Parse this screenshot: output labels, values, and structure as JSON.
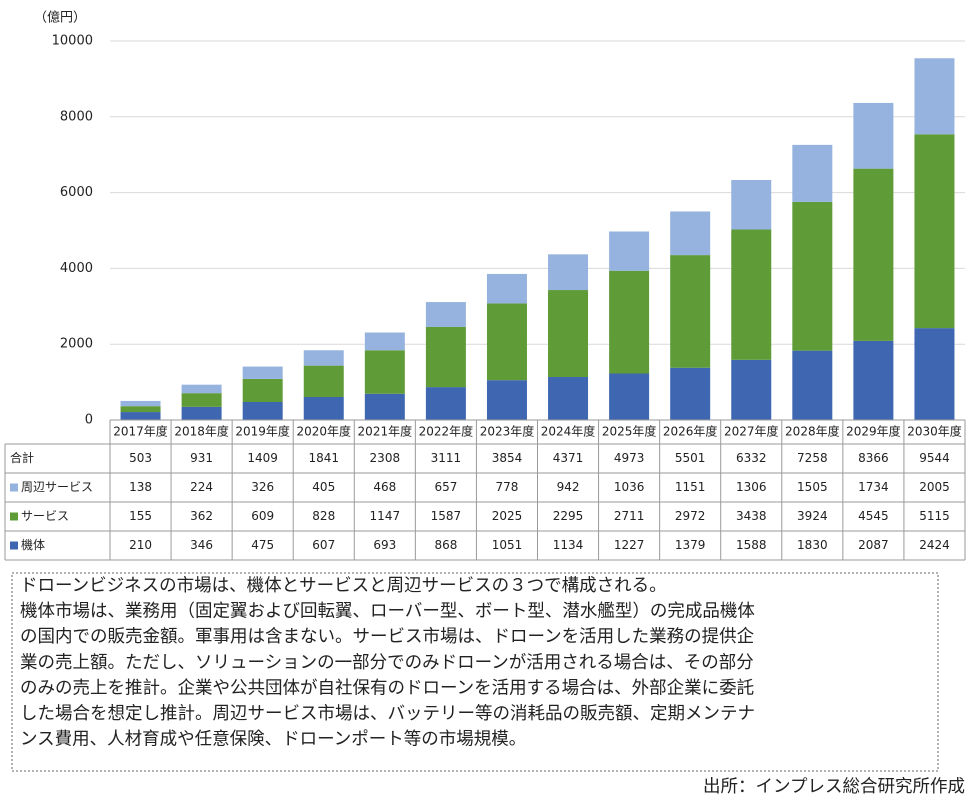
{
  "chart_data": {
    "type": "stacked_bar",
    "y_label": "（億円）",
    "categories": [
      "2017年度",
      "2018年度",
      "2019年度",
      "2020年度",
      "2021年度",
      "2022年度",
      "2023年度",
      "2024年度",
      "2025年度",
      "2026年度",
      "2027年度",
      "2028年度",
      "2029年度",
      "2030年度"
    ],
    "total": {
      "name": "合計",
      "values": [
        503,
        931,
        1409,
        1841,
        2308,
        3111,
        3854,
        4371,
        4973,
        5501,
        6332,
        7258,
        8366,
        9544
      ]
    },
    "series": [
      {
        "name": "周辺サービス",
        "color": "#95b3de",
        "values": [
          138,
          224,
          326,
          405,
          468,
          657,
          778,
          942,
          1036,
          1151,
          1306,
          1505,
          1734,
          2005
        ]
      },
      {
        "name": "サービス",
        "color": "#5f9c38",
        "values": [
          155,
          362,
          609,
          828,
          1147,
          1587,
          2025,
          2295,
          2711,
          2972,
          3438,
          3924,
          4545,
          5115
        ]
      },
      {
        "name": "機体",
        "color": "#3f67b1",
        "values": [
          210,
          346,
          475,
          607,
          693,
          868,
          1051,
          1134,
          1227,
          1379,
          1588,
          1830,
          2087,
          2424
        ]
      }
    ],
    "ylim": [
      0,
      10000
    ],
    "yticks": [
      0,
      2000,
      4000,
      6000,
      8000,
      10000
    ],
    "grid": true
  },
  "note": {
    "lines": [
      "ドローンビジネスの市場は、機体とサービスと周辺サービスの３つで構成される。",
      "機体市場は、業務用（固定翼および回転翼、ローバー型、ボート型、潜水艦型）の完成品機体",
      "の国内での販売金額。軍事用は含まない。サービス市場は、ドローンを活用した業務の提供企",
      "業の売上額。ただし、ソリューションの一部分でのみドローンが活用される場合は、その部分",
      "のみの売上を推計。企業や公共団体が自社保有のドローンを活用する場合は、外部企業に委託",
      "した場合を想定し推計。周辺サービス市場は、バッテリー等の消耗品の販売額、定期メンテナ",
      "ンス費用、人材育成や任意保険、ドローンポート等の市場規模。"
    ]
  },
  "source": "出所：インプレス総合研究所作成"
}
